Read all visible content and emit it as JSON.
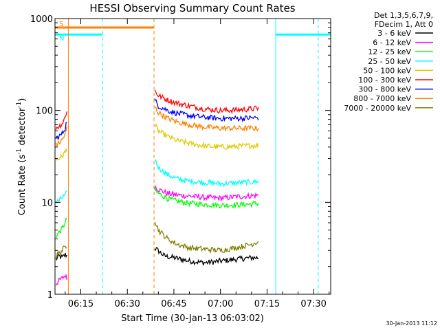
{
  "chart_data": {
    "type": "line",
    "title": "HESSI Observing Summary Count Rates",
    "xlabel": "Start Time (30-Jan-13 06:03:02)",
    "ylabel_main": "Count Rate (s",
    "ylabel_sup1": "-1",
    "ylabel_mid": " detector",
    "ylabel_sup2": "-1",
    "ylabel_end": ")",
    "yscale": "log",
    "ylim": [
      1,
      1000
    ],
    "xlim_minutes": [
      6.7,
      95.5
    ],
    "x_ticks": [
      {
        "label": "06:15",
        "minute": 15
      },
      {
        "label": "06:30",
        "minute": 30
      },
      {
        "label": "06:45",
        "minute": 45
      },
      {
        "label": "07:00",
        "minute": 60
      },
      {
        "label": "07:15",
        "minute": 75
      },
      {
        "label": "07:30",
        "minute": 90
      }
    ],
    "y_ticks": [
      {
        "label": "1",
        "value": 1
      },
      {
        "label": "10",
        "value": 10
      },
      {
        "label": "100",
        "value": 100
      },
      {
        "label": "1000",
        "value": 1000
      }
    ],
    "legend_header": [
      "Det 1,3,5,6,7,9,",
      "FDecim 1, Att 0"
    ],
    "timestamp": "30-Jan-2013 11:12",
    "flags": [
      {
        "label": "S",
        "color": "#ff8000",
        "start": 6.7,
        "end": 38.6,
        "level": 800
      },
      {
        "label": "N",
        "color": "#00ffff",
        "start": 6.7,
        "end": 22.0,
        "level": 670
      },
      {
        "label": "",
        "color": "#00ffff",
        "start": 77.8,
        "end": 95.5,
        "level": 670
      }
    ],
    "vlines": [
      {
        "minute": 6.7,
        "color": "#00ffff",
        "dash": false
      },
      {
        "minute": 11.0,
        "color": "#ff8000",
        "dash": false
      },
      {
        "minute": 22.0,
        "color": "#00ffff",
        "dash": true
      },
      {
        "minute": 38.6,
        "color": "#ff8000",
        "dash": true
      },
      {
        "minute": 77.8,
        "color": "#00ffff",
        "dash": false
      },
      {
        "minute": 91.5,
        "color": "#00ffff",
        "dash": true
      }
    ],
    "series": [
      {
        "name": "3 - 6 keV",
        "color": "#000000",
        "segments": [
          {
            "x": [
              7,
              8,
              9,
              10,
              10.8
            ],
            "y": [
              2.4,
              2.6,
              2.5,
              2.7,
              2.6
            ]
          },
          {
            "x": [
              38.8,
              42,
              45,
              50,
              55,
              60,
              65,
              70,
              72.5
            ],
            "y": [
              3.2,
              2.6,
              2.5,
              2.3,
              2.2,
              2.3,
              2.4,
              2.5,
              2.5
            ]
          }
        ]
      },
      {
        "name": "6 - 12 keV",
        "color": "#ff00ff",
        "segments": [
          {
            "x": [
              7,
              8,
              9,
              10,
              10.8
            ],
            "y": [
              1.3,
              1.4,
              1.5,
              1.6,
              1.4
            ]
          },
          {
            "x": [
              38.8,
              40,
              43,
              46,
              50,
              55,
              60,
              65,
              70,
              72.5
            ],
            "y": [
              15,
              13.8,
              12.5,
              12,
              11.7,
              11.3,
              11.1,
              11.5,
              11.8,
              12
            ]
          }
        ]
      },
      {
        "name": "12 - 25 keV",
        "color": "#00ff00",
        "segments": [
          {
            "x": [
              7,
              8,
              9,
              10,
              10.8
            ],
            "y": [
              4.3,
              4.7,
              5.2,
              6.0,
              7.0
            ]
          },
          {
            "x": [
              38.8,
              40,
              43,
              46,
              50,
              55,
              60,
              65,
              70,
              72.5
            ],
            "y": [
              13.5,
              12.5,
              11,
              10.3,
              9.8,
              9.5,
              9.3,
              9.4,
              9.6,
              9.8
            ]
          }
        ]
      },
      {
        "name": "25 - 50 keV",
        "color": "#00ffff",
        "segments": [
          {
            "x": [
              7,
              8,
              9,
              10,
              10.8
            ],
            "y": [
              10,
              10.5,
              11.2,
              12,
              13
            ]
          },
          {
            "x": [
              38.8,
              40,
              43,
              46,
              50,
              55,
              60,
              65,
              70,
              72.5
            ],
            "y": [
              30,
              24,
              20,
              18,
              17,
              16.5,
              16,
              16.3,
              16.6,
              17
            ]
          }
        ]
      },
      {
        "name": "50 - 100 keV",
        "color": "#e0c800",
        "segments": [
          {
            "x": [
              7,
              8,
              9,
              10,
              10.8
            ],
            "y": [
              29,
              30,
              32,
              35,
              40
            ]
          },
          {
            "x": [
              38.8,
              40,
              43,
              46,
              50,
              55,
              60,
              65,
              70,
              72.5
            ],
            "y": [
              70,
              60,
              52,
              47,
              44,
              41,
              40,
              40.5,
              41.5,
              42
            ]
          }
        ]
      },
      {
        "name": "100 - 300 keV",
        "color": "#ff0000",
        "segments": [
          {
            "x": [
              7,
              8,
              9,
              10,
              10.8
            ],
            "y": [
              65,
              67,
              72,
              85,
              110
            ]
          },
          {
            "x": [
              38.8,
              40,
              43,
              46,
              50,
              55,
              60,
              65,
              70,
              72.5
            ],
            "y": [
              165,
              145,
              130,
              120,
              112,
              104,
              100,
              101,
              104,
              106
            ]
          }
        ]
      },
      {
        "name": "300 - 800 keV",
        "color": "#0000ff",
        "segments": [
          {
            "x": [
              7,
              8,
              9,
              10,
              10.8
            ],
            "y": [
              50,
              52,
              56,
              65,
              85
            ]
          },
          {
            "x": [
              38.8,
              40,
              43,
              46,
              50,
              55,
              60,
              65,
              70,
              72.5
            ],
            "y": [
              130,
              112,
              100,
              93,
              88,
              84,
              82,
              82,
              83,
              83
            ]
          }
        ]
      },
      {
        "name": "800 - 7000 keV",
        "color": "#ff8000",
        "segments": [
          {
            "x": [
              7,
              8,
              9,
              10,
              10.8
            ],
            "y": [
              42,
              44,
              48,
              55,
              70
            ]
          },
          {
            "x": [
              38.8,
              40,
              43,
              46,
              50,
              55,
              60,
              65,
              70,
              72.5
            ],
            "y": [
              110,
              95,
              82,
              75,
              70,
              66,
              64,
              64,
              64,
              64
            ]
          }
        ]
      },
      {
        "name": "7000 - 20000 keV",
        "color": "#808000",
        "segments": [
          {
            "x": [
              7,
              8,
              9,
              10,
              10.8
            ],
            "y": [
              2.6,
              2.8,
              3.0,
              3.3,
              3.5
            ]
          },
          {
            "x": [
              38.8,
              40,
              43,
              46,
              50,
              55,
              60,
              65,
              70,
              72.5
            ],
            "y": [
              6.5,
              5.0,
              4.0,
              3.5,
              3.2,
              3.1,
              3.0,
              3.2,
              3.5,
              3.8
            ]
          }
        ]
      }
    ]
  }
}
